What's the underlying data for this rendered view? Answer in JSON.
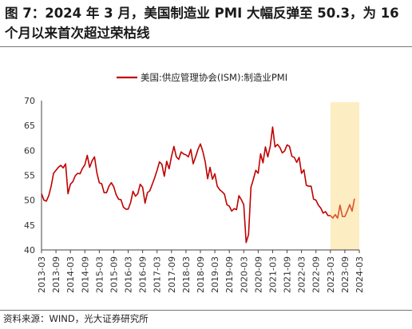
{
  "title": "图 7：2024 年 3 月，美国制造业 PMI 大幅反弹至 50.3，为 16 个月以来首次超过荣枯线",
  "source": "资料来源：WIND，光大证券研究所",
  "colors": {
    "line": "#c00000",
    "line_recent": "#d9542f",
    "highlight": "#fdedc2",
    "axis": "#444444"
  },
  "chart_data": {
    "type": "line",
    "title": "",
    "xlabel": "",
    "ylabel": "",
    "ylim": [
      40,
      70
    ],
    "yticks": [
      40,
      45,
      50,
      55,
      60,
      65,
      70
    ],
    "xticks": [
      "2013-03",
      "2013-09",
      "2014-03",
      "2014-09",
      "2015-03",
      "2015-09",
      "2016-03",
      "2016-09",
      "2017-03",
      "2017-09",
      "2018-03",
      "2018-09",
      "2019-03",
      "2019-09",
      "2020-03",
      "2020-09",
      "2021-03",
      "2021-09",
      "2022-03",
      "2022-09",
      "2023-03",
      "2023-09",
      "2024-03"
    ],
    "x_start": "2013-03",
    "x_end": "2024-03",
    "grid": false,
    "legend": "top-center",
    "highlight_range": [
      "2023-03",
      "2024-03"
    ],
    "series": [
      {
        "name": "美国:供应管理协会(ISM):制造业PMI",
        "values": [
          51.3,
          50.0,
          49.8,
          50.9,
          52.8,
          55.4,
          56.0,
          56.6,
          57.0,
          56.5,
          57.3,
          51.3,
          53.2,
          53.7,
          54.9,
          55.4,
          55.3,
          56.4,
          57.1,
          59.0,
          56.6,
          57.9,
          58.7,
          55.5,
          53.5,
          53.3,
          51.5,
          51.5,
          52.8,
          53.5,
          52.7,
          51.1,
          50.2,
          50.1,
          48.6,
          48.2,
          48.2,
          49.5,
          51.8,
          50.8,
          51.3,
          53.2,
          52.6,
          49.4,
          51.5,
          51.9,
          53.2,
          54.5,
          56.0,
          57.7,
          57.2,
          54.8,
          57.8,
          56.3,
          58.8,
          60.8,
          58.7,
          58.2,
          59.7,
          59.3,
          59.1,
          58.7,
          60.2,
          57.3,
          58.7,
          60.2,
          61.3,
          59.8,
          57.7,
          54.3,
          56.6,
          54.2,
          55.3,
          52.8,
          52.1,
          51.7,
          51.2,
          49.1,
          48.8,
          47.8,
          48.3,
          48.1,
          50.9,
          50.1,
          49.1,
          41.5,
          43.1,
          52.6,
          54.2,
          56.0,
          55.4,
          59.3,
          57.5,
          60.7,
          58.7,
          60.8,
          64.7,
          60.7,
          61.2,
          60.6,
          59.5,
          59.9,
          61.1,
          60.8,
          58.8,
          58.6,
          57.6,
          58.6,
          55.4,
          56.1,
          53.0,
          52.8,
          52.8,
          50.2,
          50.0,
          49.0,
          48.4,
          47.4,
          47.7,
          46.9,
          46.9,
          46.4,
          47.1,
          46.4,
          49.0,
          46.7,
          46.7,
          47.8,
          49.1,
          47.8,
          50.3
        ]
      }
    ]
  }
}
